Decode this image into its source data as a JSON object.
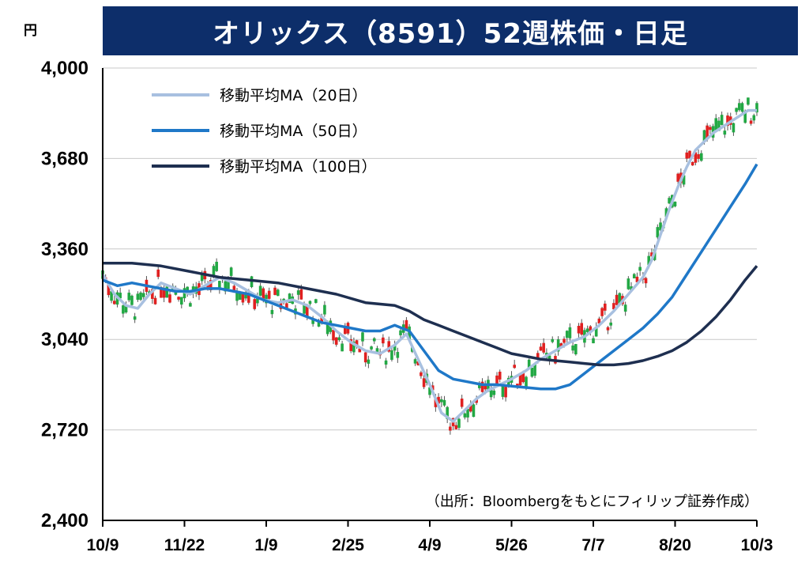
{
  "title": "オリックス（8591）52週株価・日足",
  "chart_data": {
    "type": "candlestick",
    "unit": "円",
    "ylim": [
      2400,
      4000
    ],
    "yticks": [
      2400,
      2720,
      3040,
      3360,
      3680,
      4000
    ],
    "ytick_labels": [
      "2,400",
      "2,720",
      "3,040",
      "3,360",
      "3,680",
      "4,000"
    ],
    "xtick_labels": [
      "10/9",
      "11/22",
      "1/9",
      "2/25",
      "4/9",
      "5/26",
      "7/7",
      "8/20",
      "10/3"
    ],
    "grid": true,
    "legend_position": "top-left",
    "source": "（出所：Bloombergをもとにフィリップ証券作成）",
    "series": [
      {
        "name": "移動平均MA（20日）",
        "color": "#a8c0e0",
        "points": [
          [
            0,
            3270
          ],
          [
            4,
            3200
          ],
          [
            8,
            3160
          ],
          [
            12,
            3150
          ],
          [
            16,
            3200
          ],
          [
            20,
            3240
          ],
          [
            25,
            3220
          ],
          [
            30,
            3200
          ],
          [
            35,
            3230
          ],
          [
            40,
            3260
          ],
          [
            45,
            3240
          ],
          [
            50,
            3210
          ],
          [
            55,
            3180
          ],
          [
            60,
            3170
          ],
          [
            65,
            3180
          ],
          [
            70,
            3160
          ],
          [
            75,
            3120
          ],
          [
            80,
            3070
          ],
          [
            85,
            3030
          ],
          [
            90,
            3000
          ],
          [
            95,
            2990
          ],
          [
            100,
            3020
          ],
          [
            104,
            3060
          ],
          [
            108,
            2970
          ],
          [
            112,
            2880
          ],
          [
            116,
            2780
          ],
          [
            120,
            2750
          ],
          [
            124,
            2790
          ],
          [
            128,
            2830
          ],
          [
            132,
            2860
          ],
          [
            136,
            2880
          ],
          [
            140,
            2900
          ],
          [
            145,
            2930
          ],
          [
            150,
            2970
          ],
          [
            155,
            3000
          ],
          [
            160,
            3030
          ],
          [
            165,
            3050
          ],
          [
            170,
            3090
          ],
          [
            175,
            3140
          ],
          [
            180,
            3200
          ],
          [
            185,
            3260
          ],
          [
            188,
            3320
          ],
          [
            191,
            3410
          ],
          [
            194,
            3500
          ],
          [
            197,
            3580
          ],
          [
            200,
            3650
          ],
          [
            203,
            3710
          ],
          [
            206,
            3740
          ],
          [
            209,
            3770
          ],
          [
            212,
            3790
          ],
          [
            215,
            3810
          ],
          [
            218,
            3830
          ],
          [
            221,
            3850
          ],
          [
            224,
            3850
          ]
        ]
      },
      {
        "name": "移動平均MA（50日）",
        "color": "#1f78c8",
        "points": [
          [
            0,
            3250
          ],
          [
            5,
            3230
          ],
          [
            10,
            3240
          ],
          [
            15,
            3230
          ],
          [
            20,
            3220
          ],
          [
            25,
            3210
          ],
          [
            30,
            3210
          ],
          [
            35,
            3220
          ],
          [
            40,
            3220
          ],
          [
            45,
            3210
          ],
          [
            50,
            3200
          ],
          [
            55,
            3180
          ],
          [
            60,
            3160
          ],
          [
            65,
            3140
          ],
          [
            70,
            3120
          ],
          [
            75,
            3100
          ],
          [
            80,
            3090
          ],
          [
            85,
            3080
          ],
          [
            90,
            3070
          ],
          [
            95,
            3070
          ],
          [
            100,
            3090
          ],
          [
            105,
            3070
          ],
          [
            110,
            3000
          ],
          [
            115,
            2930
          ],
          [
            120,
            2900
          ],
          [
            125,
            2890
          ],
          [
            130,
            2880
          ],
          [
            135,
            2880
          ],
          [
            140,
            2875
          ],
          [
            145,
            2870
          ],
          [
            150,
            2865
          ],
          [
            155,
            2865
          ],
          [
            160,
            2880
          ],
          [
            165,
            2920
          ],
          [
            170,
            2960
          ],
          [
            175,
            3000
          ],
          [
            180,
            3040
          ],
          [
            185,
            3080
          ],
          [
            190,
            3130
          ],
          [
            195,
            3190
          ],
          [
            200,
            3270
          ],
          [
            205,
            3350
          ],
          [
            210,
            3430
          ],
          [
            215,
            3510
          ],
          [
            220,
            3590
          ],
          [
            224,
            3660
          ]
        ]
      },
      {
        "name": "移動平均MA（100日）",
        "color": "#1e2f50",
        "points": [
          [
            0,
            3310
          ],
          [
            10,
            3310
          ],
          [
            20,
            3300
          ],
          [
            30,
            3280
          ],
          [
            40,
            3260
          ],
          [
            50,
            3250
          ],
          [
            60,
            3240
          ],
          [
            70,
            3220
          ],
          [
            80,
            3200
          ],
          [
            90,
            3170
          ],
          [
            100,
            3160
          ],
          [
            105,
            3140
          ],
          [
            110,
            3110
          ],
          [
            115,
            3090
          ],
          [
            120,
            3070
          ],
          [
            125,
            3050
          ],
          [
            130,
            3030
          ],
          [
            135,
            3010
          ],
          [
            140,
            2990
          ],
          [
            145,
            2980
          ],
          [
            150,
            2970
          ],
          [
            155,
            2965
          ],
          [
            160,
            2960
          ],
          [
            165,
            2955
          ],
          [
            170,
            2950
          ],
          [
            175,
            2950
          ],
          [
            180,
            2955
          ],
          [
            185,
            2965
          ],
          [
            190,
            2980
          ],
          [
            195,
            3000
          ],
          [
            200,
            3030
          ],
          [
            205,
            3070
          ],
          [
            210,
            3120
          ],
          [
            215,
            3180
          ],
          [
            220,
            3250
          ],
          [
            224,
            3300
          ]
        ]
      }
    ]
  }
}
